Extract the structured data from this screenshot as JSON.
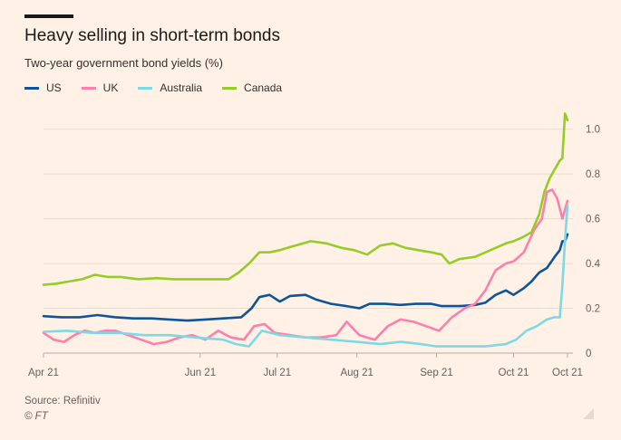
{
  "title": "Heavy selling in short-term bonds",
  "subtitle": "Two-year government bond yields (%)",
  "source": "Source: Refinitiv",
  "credit": "© FT",
  "chart_data": {
    "type": "line",
    "title": "Heavy selling in short-term bonds",
    "subtitle": "Two-year government bond yields (%)",
    "xlabel": "",
    "ylabel": "",
    "ylim": [
      0,
      1.1
    ],
    "xlim": [
      "2021-04-01",
      "2021-10-22"
    ],
    "y_ticks": [
      {
        "value": 0,
        "label": "0"
      },
      {
        "value": 0.2,
        "label": "0.2"
      },
      {
        "value": 0.4,
        "label": "0.4"
      },
      {
        "value": 0.6,
        "label": "0.6"
      },
      {
        "value": 0.8,
        "label": "0.8"
      },
      {
        "value": 1.0,
        "label": "1.0"
      }
    ],
    "x_ticks": [
      {
        "date": "2021-04-01",
        "label": "Apr 21"
      },
      {
        "date": "2021-06-01",
        "label": "Jun 21"
      },
      {
        "date": "2021-07-01",
        "label": "Jul 21"
      },
      {
        "date": "2021-08-01",
        "label": "Aug 21"
      },
      {
        "date": "2021-09-01",
        "label": "Sep 21"
      },
      {
        "date": "2021-10-01",
        "label": "Oct 21"
      },
      {
        "date": "2021-10-22",
        "label": "Oct 21"
      }
    ],
    "grid": true,
    "legend_position": "top-left",
    "series": [
      {
        "name": "US",
        "color": "#0F5499",
        "points": [
          [
            "2021-04-01",
            0.165
          ],
          [
            "2021-04-08",
            0.16
          ],
          [
            "2021-04-15",
            0.16
          ],
          [
            "2021-04-22",
            0.17
          ],
          [
            "2021-04-29",
            0.16
          ],
          [
            "2021-05-06",
            0.155
          ],
          [
            "2021-05-13",
            0.155
          ],
          [
            "2021-05-20",
            0.15
          ],
          [
            "2021-05-27",
            0.145
          ],
          [
            "2021-06-03",
            0.15
          ],
          [
            "2021-06-10",
            0.155
          ],
          [
            "2021-06-17",
            0.16
          ],
          [
            "2021-06-21",
            0.2
          ],
          [
            "2021-06-24",
            0.25
          ],
          [
            "2021-06-28",
            0.26
          ],
          [
            "2021-07-02",
            0.23
          ],
          [
            "2021-07-06",
            0.255
          ],
          [
            "2021-07-12",
            0.26
          ],
          [
            "2021-07-16",
            0.24
          ],
          [
            "2021-07-22",
            0.22
          ],
          [
            "2021-07-28",
            0.21
          ],
          [
            "2021-08-02",
            0.2
          ],
          [
            "2021-08-06",
            0.22
          ],
          [
            "2021-08-12",
            0.22
          ],
          [
            "2021-08-18",
            0.215
          ],
          [
            "2021-08-24",
            0.22
          ],
          [
            "2021-08-30",
            0.22
          ],
          [
            "2021-09-03",
            0.21
          ],
          [
            "2021-09-10",
            0.21
          ],
          [
            "2021-09-16",
            0.215
          ],
          [
            "2021-09-20",
            0.225
          ],
          [
            "2021-09-24",
            0.26
          ],
          [
            "2021-09-28",
            0.28
          ],
          [
            "2021-10-01",
            0.26
          ],
          [
            "2021-10-05",
            0.29
          ],
          [
            "2021-10-08",
            0.32
          ],
          [
            "2021-10-11",
            0.36
          ],
          [
            "2021-10-14",
            0.38
          ],
          [
            "2021-10-17",
            0.43
          ],
          [
            "2021-10-19",
            0.46
          ],
          [
            "2021-10-20",
            0.5
          ],
          [
            "2021-10-21",
            0.5
          ],
          [
            "2021-10-22",
            0.53
          ]
        ]
      },
      {
        "name": "UK",
        "color": "#FF7FAA",
        "points": [
          [
            "2021-04-01",
            0.09
          ],
          [
            "2021-04-05",
            0.06
          ],
          [
            "2021-04-09",
            0.05
          ],
          [
            "2021-04-13",
            0.08
          ],
          [
            "2021-04-17",
            0.1
          ],
          [
            "2021-04-21",
            0.09
          ],
          [
            "2021-04-25",
            0.1
          ],
          [
            "2021-04-29",
            0.1
          ],
          [
            "2021-05-04",
            0.08
          ],
          [
            "2021-05-09",
            0.06
          ],
          [
            "2021-05-14",
            0.04
          ],
          [
            "2021-05-19",
            0.05
          ],
          [
            "2021-05-24",
            0.07
          ],
          [
            "2021-05-29",
            0.08
          ],
          [
            "2021-06-03",
            0.06
          ],
          [
            "2021-06-08",
            0.1
          ],
          [
            "2021-06-13",
            0.07
          ],
          [
            "2021-06-18",
            0.06
          ],
          [
            "2021-06-22",
            0.12
          ],
          [
            "2021-06-26",
            0.13
          ],
          [
            "2021-06-30",
            0.09
          ],
          [
            "2021-07-06",
            0.08
          ],
          [
            "2021-07-12",
            0.07
          ],
          [
            "2021-07-18",
            0.07
          ],
          [
            "2021-07-24",
            0.08
          ],
          [
            "2021-07-28",
            0.14
          ],
          [
            "2021-08-02",
            0.08
          ],
          [
            "2021-08-08",
            0.06
          ],
          [
            "2021-08-13",
            0.12
          ],
          [
            "2021-08-18",
            0.15
          ],
          [
            "2021-08-23",
            0.14
          ],
          [
            "2021-08-28",
            0.12
          ],
          [
            "2021-09-02",
            0.1
          ],
          [
            "2021-09-07",
            0.16
          ],
          [
            "2021-09-12",
            0.2
          ],
          [
            "2021-09-16",
            0.22
          ],
          [
            "2021-09-20",
            0.28
          ],
          [
            "2021-09-24",
            0.37
          ],
          [
            "2021-09-28",
            0.4
          ],
          [
            "2021-10-01",
            0.41
          ],
          [
            "2021-10-05",
            0.45
          ],
          [
            "2021-10-09",
            0.55
          ],
          [
            "2021-10-12",
            0.6
          ],
          [
            "2021-10-14",
            0.72
          ],
          [
            "2021-10-16",
            0.73
          ],
          [
            "2021-10-18",
            0.69
          ],
          [
            "2021-10-20",
            0.6
          ],
          [
            "2021-10-22",
            0.68
          ]
        ]
      },
      {
        "name": "Australia",
        "color": "#7ED8E6",
        "points": [
          [
            "2021-04-01",
            0.095
          ],
          [
            "2021-04-10",
            0.1
          ],
          [
            "2021-04-20",
            0.09
          ],
          [
            "2021-04-30",
            0.09
          ],
          [
            "2021-05-10",
            0.08
          ],
          [
            "2021-05-20",
            0.08
          ],
          [
            "2021-05-30",
            0.07
          ],
          [
            "2021-06-10",
            0.06
          ],
          [
            "2021-06-15",
            0.04
          ],
          [
            "2021-06-20",
            0.03
          ],
          [
            "2021-06-25",
            0.1
          ],
          [
            "2021-07-02",
            0.08
          ],
          [
            "2021-07-12",
            0.07
          ],
          [
            "2021-07-22",
            0.06
          ],
          [
            "2021-08-01",
            0.05
          ],
          [
            "2021-08-10",
            0.04
          ],
          [
            "2021-08-18",
            0.05
          ],
          [
            "2021-08-26",
            0.04
          ],
          [
            "2021-09-01",
            0.03
          ],
          [
            "2021-09-10",
            0.03
          ],
          [
            "2021-09-20",
            0.03
          ],
          [
            "2021-09-28",
            0.04
          ],
          [
            "2021-10-02",
            0.06
          ],
          [
            "2021-10-06",
            0.1
          ],
          [
            "2021-10-10",
            0.12
          ],
          [
            "2021-10-14",
            0.15
          ],
          [
            "2021-10-17",
            0.16
          ],
          [
            "2021-10-19",
            0.16
          ],
          [
            "2021-10-20",
            0.3
          ],
          [
            "2021-10-21",
            0.5
          ],
          [
            "2021-10-22",
            0.66
          ]
        ]
      },
      {
        "name": "Canada",
        "color": "#96CC28",
        "points": [
          [
            "2021-04-01",
            0.305
          ],
          [
            "2021-04-06",
            0.31
          ],
          [
            "2021-04-11",
            0.32
          ],
          [
            "2021-04-16",
            0.33
          ],
          [
            "2021-04-21",
            0.35
          ],
          [
            "2021-04-26",
            0.34
          ],
          [
            "2021-05-01",
            0.34
          ],
          [
            "2021-05-08",
            0.33
          ],
          [
            "2021-05-15",
            0.335
          ],
          [
            "2021-05-22",
            0.33
          ],
          [
            "2021-05-29",
            0.33
          ],
          [
            "2021-06-05",
            0.33
          ],
          [
            "2021-06-12",
            0.33
          ],
          [
            "2021-06-16",
            0.36
          ],
          [
            "2021-06-20",
            0.4
          ],
          [
            "2021-06-24",
            0.45
          ],
          [
            "2021-06-28",
            0.45
          ],
          [
            "2021-07-02",
            0.46
          ],
          [
            "2021-07-08",
            0.48
          ],
          [
            "2021-07-14",
            0.5
          ],
          [
            "2021-07-20",
            0.49
          ],
          [
            "2021-07-26",
            0.47
          ],
          [
            "2021-07-31",
            0.46
          ],
          [
            "2021-08-05",
            0.44
          ],
          [
            "2021-08-10",
            0.48
          ],
          [
            "2021-08-15",
            0.49
          ],
          [
            "2021-08-20",
            0.47
          ],
          [
            "2021-08-25",
            0.46
          ],
          [
            "2021-08-30",
            0.45
          ],
          [
            "2021-09-03",
            0.44
          ],
          [
            "2021-09-06",
            0.4
          ],
          [
            "2021-09-10",
            0.42
          ],
          [
            "2021-09-16",
            0.43
          ],
          [
            "2021-09-22",
            0.46
          ],
          [
            "2021-09-28",
            0.49
          ],
          [
            "2021-10-01",
            0.5
          ],
          [
            "2021-10-05",
            0.52
          ],
          [
            "2021-10-08",
            0.54
          ],
          [
            "2021-10-11",
            0.62
          ],
          [
            "2021-10-13",
            0.72
          ],
          [
            "2021-10-15",
            0.78
          ],
          [
            "2021-10-17",
            0.82
          ],
          [
            "2021-10-19",
            0.86
          ],
          [
            "2021-10-20",
            0.87
          ],
          [
            "2021-10-21",
            1.07
          ],
          [
            "2021-10-22",
            1.04
          ]
        ]
      }
    ]
  }
}
